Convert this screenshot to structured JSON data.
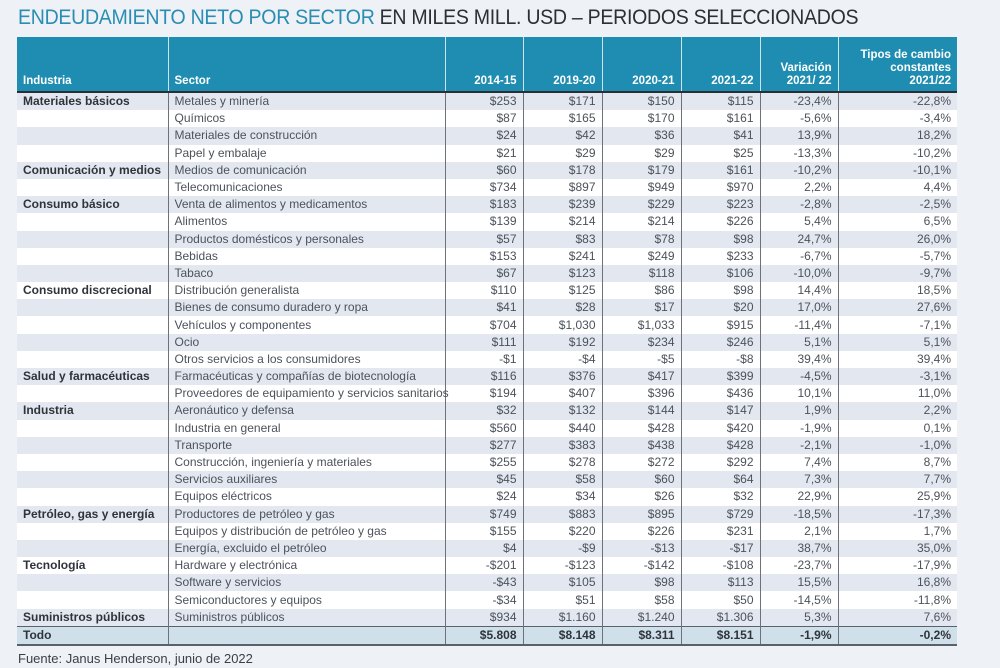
{
  "title": {
    "highlight": "ENDEUDAMIENTO NETO POR SECTOR",
    "rest": " EN MILES MILL. USD – PERIODOS SELECCIONADOS"
  },
  "headers": [
    "Industria",
    "Sector",
    "2014-15",
    "2019-20",
    "2020-21",
    "2021-22",
    "Variación 2021/ 22",
    "Tipos de cambio constantes 2021/22"
  ],
  "rows": [
    [
      "Materiales básicos",
      "Metales y minería",
      "$253",
      "$171",
      "$150",
      "$115",
      "-23,4%",
      "-22,8%"
    ],
    [
      "",
      "Químicos",
      "$87",
      "$165",
      "$170",
      "$161",
      "-5,6%",
      "-3,4%"
    ],
    [
      "",
      "Materiales de construcción",
      "$24",
      "$42",
      "$36",
      "$41",
      "13,9%",
      "18,2%"
    ],
    [
      "",
      "Papel y embalaje",
      "$21",
      "$29",
      "$29",
      "$25",
      "-13,3%",
      "-10,2%"
    ],
    [
      "Comunicación y medios",
      "Medios de comunicación",
      "$60",
      "$178",
      "$179",
      "$161",
      "-10,2%",
      "-10,1%"
    ],
    [
      "",
      "Telecomunicaciones",
      "$734",
      "$897",
      "$949",
      "$970",
      "2,2%",
      "4,4%"
    ],
    [
      "Consumo básico",
      "Venta de alimentos y medicamentos",
      "$183",
      "$239",
      "$229",
      "$223",
      "-2,8%",
      "-2,5%"
    ],
    [
      "",
      "Alimentos",
      "$139",
      "$214",
      "$214",
      "$226",
      "5,4%",
      "6,5%"
    ],
    [
      "",
      "Productos domésticos y personales",
      "$57",
      "$83",
      "$78",
      "$98",
      "24,7%",
      "26,0%"
    ],
    [
      "",
      "Bebidas",
      "$153",
      "$241",
      "$249",
      "$233",
      "-6,7%",
      "-5,7%"
    ],
    [
      "",
      "Tabaco",
      "$67",
      "$123",
      "$118",
      "$106",
      "-10,0%",
      "-9,7%"
    ],
    [
      "Consumo discrecional",
      "Distribución generalista",
      "$110",
      "$125",
      "$86",
      "$98",
      "14,4%",
      "18,5%"
    ],
    [
      "",
      "Bienes de consumo duradero y ropa",
      "$41",
      "$28",
      "$17",
      "$20",
      "17,0%",
      "27,6%"
    ],
    [
      "",
      "Vehículos y componentes",
      "$704",
      "$1,030",
      "$1,033",
      "$915",
      "-11,4%",
      "-7,1%"
    ],
    [
      "",
      "Ocio",
      "$111",
      "$192",
      "$234",
      "$246",
      "5,1%",
      "5,1%"
    ],
    [
      "",
      "Otros servicios a los consumidores",
      "-$1",
      "-$4",
      "-$5",
      "-$8",
      "39,4%",
      "39,4%"
    ],
    [
      "Salud y farmacéuticas",
      "Farmacéuticas y compañías de biotecnología",
      "$116",
      "$376",
      "$417",
      "$399",
      "-4,5%",
      "-3,1%"
    ],
    [
      "",
      "Proveedores de equipamiento y servicios sanitarios",
      "$194",
      "$407",
      "$396",
      "$436",
      "10,1%",
      "11,0%"
    ],
    [
      "Industria",
      "Aeronáutico y defensa",
      "$32",
      "$132",
      "$144",
      "$147",
      "1,9%",
      "2,2%"
    ],
    [
      "",
      "Industria en general",
      "$560",
      "$440",
      "$428",
      "$420",
      "-1,9%",
      "0,1%"
    ],
    [
      "",
      "Transporte",
      "$277",
      "$383",
      "$438",
      "$428",
      "-2,1%",
      "-1,0%"
    ],
    [
      "",
      "Construcción, ingeniería y materiales",
      "$255",
      "$278",
      "$272",
      "$292",
      "7,4%",
      "8,7%"
    ],
    [
      "",
      "Servicios auxiliares",
      "$45",
      "$58",
      "$60",
      "$64",
      "7,3%",
      "7,7%"
    ],
    [
      "",
      "Equipos eléctricos",
      "$24",
      "$34",
      "$26",
      "$32",
      "22,9%",
      "25,9%"
    ],
    [
      "Petróleo, gas y energía",
      "Productores de petróleo y gas",
      "$749",
      "$883",
      "$895",
      "$729",
      "-18,5%",
      "-17,3%"
    ],
    [
      "",
      "Equipos y distribución de petróleo y gas",
      "$155",
      "$220",
      "$226",
      "$231",
      "2,1%",
      "1,7%"
    ],
    [
      "",
      "Energía, excluido el petróleo",
      "$4",
      "-$9",
      "-$13",
      "-$17",
      "38,7%",
      "35,0%"
    ],
    [
      "Tecnología",
      "Hardware y electrónica",
      "-$201",
      "-$123",
      "-$142",
      "-$108",
      "-23,7%",
      "-17,9%"
    ],
    [
      "",
      "Software y servicios",
      "-$43",
      "$105",
      "$98",
      "$113",
      "15,5%",
      "16,8%"
    ],
    [
      "",
      "Semiconductores y equipos",
      "-$34",
      "$51",
      "$58",
      "$50",
      "-14,5%",
      "-11,8%"
    ],
    [
      "Suministros públicos",
      "Suministros públicos",
      "$934",
      "$1.160",
      "$1.240",
      "$1.306",
      "5,3%",
      "7,6%"
    ]
  ],
  "total": [
    "Todo",
    "",
    "$5.808",
    "$8.148",
    "$8.311",
    "$8.151",
    "-1,9%",
    "-0,2%"
  ],
  "source": "Fuente: Janus Henderson, junio de 2022"
}
